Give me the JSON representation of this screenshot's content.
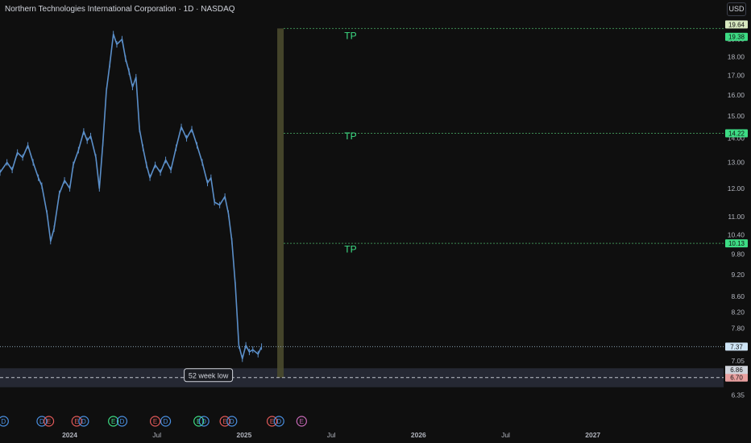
{
  "header": {
    "title": "Northern Technologies International Corporation · 1D · NASDAQ",
    "currency": "USD"
  },
  "colors": {
    "background": "#0f0f0f",
    "candle": "#5b8fc9",
    "tp_text": "#3ddc84",
    "tp_line": "#3f8f55",
    "band": "#2a2e3c",
    "vertical_band": "#4a4a2e",
    "red_badge": "#e35a5a",
    "purple_badge": "#c86ab8",
    "green_badge": "#3ddc84",
    "blue_badge": "#4a90e2"
  },
  "chart_data": {
    "type": "line",
    "title": "Northern Technologies International Corporation · 1D · NASDAQ",
    "xlabel": "",
    "ylabel": "",
    "x_ticks": [
      "2024",
      "Jul",
      "2025",
      "Jul",
      "2026",
      "Jul",
      "2027"
    ],
    "x_tick_values": [
      2024.0,
      2024.5,
      2025.0,
      2025.5,
      2026.0,
      2026.5,
      2027.0
    ],
    "xlim": [
      2023.6,
      2027.75
    ],
    "ylim": [
      6.2,
      20.3
    ],
    "y_scale": "log",
    "y_ticks": [
      "19.00",
      "18.00",
      "17.00",
      "16.00",
      "15.00",
      "14.00",
      "13.00",
      "12.00",
      "11.00",
      "10.40",
      "9.80",
      "9.20",
      "8.60",
      "8.20",
      "7.80",
      "7.05",
      "6.35"
    ],
    "grid": false,
    "series": [
      {
        "values": [
          [
            2023.6,
            12.6
          ],
          [
            2023.64,
            13.0
          ],
          [
            2023.67,
            12.7
          ],
          [
            2023.7,
            13.4
          ],
          [
            2023.73,
            13.2
          ],
          [
            2023.76,
            13.7
          ],
          [
            2023.79,
            13.0
          ],
          [
            2023.82,
            12.4
          ],
          [
            2023.84,
            12.1
          ],
          [
            2023.87,
            11.1
          ],
          [
            2023.89,
            10.2
          ],
          [
            2023.91,
            10.6
          ],
          [
            2023.94,
            11.8
          ],
          [
            2023.97,
            12.3
          ],
          [
            2024.0,
            12.0
          ],
          [
            2024.02,
            12.9
          ],
          [
            2024.05,
            13.5
          ],
          [
            2024.08,
            14.3
          ],
          [
            2024.1,
            13.9
          ],
          [
            2024.12,
            14.1
          ],
          [
            2024.15,
            13.2
          ],
          [
            2024.17,
            12.0
          ],
          [
            2024.19,
            13.8
          ],
          [
            2024.21,
            16.2
          ],
          [
            2024.23,
            17.6
          ],
          [
            2024.25,
            19.3
          ],
          [
            2024.27,
            18.7
          ],
          [
            2024.3,
            19.0
          ],
          [
            2024.32,
            17.9
          ],
          [
            2024.34,
            17.2
          ],
          [
            2024.36,
            16.4
          ],
          [
            2024.38,
            16.9
          ],
          [
            2024.4,
            14.4
          ],
          [
            2024.42,
            13.6
          ],
          [
            2024.44,
            12.9
          ],
          [
            2024.46,
            12.4
          ],
          [
            2024.49,
            12.9
          ],
          [
            2024.52,
            12.6
          ],
          [
            2024.55,
            13.1
          ],
          [
            2024.58,
            12.7
          ],
          [
            2024.61,
            13.6
          ],
          [
            2024.64,
            14.5
          ],
          [
            2024.67,
            14.0
          ],
          [
            2024.7,
            14.4
          ],
          [
            2024.73,
            13.7
          ],
          [
            2024.76,
            13.0
          ],
          [
            2024.79,
            12.2
          ],
          [
            2024.81,
            12.4
          ],
          [
            2024.83,
            11.5
          ],
          [
            2024.86,
            11.4
          ],
          [
            2024.89,
            11.7
          ],
          [
            2024.91,
            11.1
          ],
          [
            2024.93,
            10.2
          ],
          [
            2024.95,
            8.9
          ],
          [
            2024.97,
            7.4
          ],
          [
            2024.99,
            7.1
          ],
          [
            2025.01,
            7.4
          ],
          [
            2025.03,
            7.25
          ],
          [
            2025.05,
            7.3
          ],
          [
            2025.08,
            7.2
          ],
          [
            2025.1,
            7.37
          ]
        ]
      }
    ],
    "horizontal_lines": [
      {
        "value": 19.64,
        "label": "19.64"
      },
      {
        "value": 19.38,
        "label": "19.38"
      },
      {
        "value": 14.22,
        "label": "14.22"
      },
      {
        "value": 10.13,
        "label": "10.13"
      },
      {
        "value": 7.37,
        "label": "7.37"
      },
      {
        "value": 6.7,
        "label": "6.70"
      }
    ],
    "zone": {
      "from": 6.7,
      "to": 6.86,
      "label": "6.86"
    },
    "annotations": [
      {
        "text": "TP",
        "x": 2025.61,
        "y": 19.0
      },
      {
        "text": "TP",
        "x": 2025.61,
        "y": 13.95
      },
      {
        "text": "TP",
        "x": 2025.61,
        "y": 9.85
      },
      {
        "text": "52 week low",
        "x": 2024.98,
        "y": 6.75
      }
    ],
    "event_markers": [
      {
        "text": "D",
        "x": 2023.62,
        "kind": "blue"
      },
      {
        "text": "D",
        "x": 2023.84,
        "kind": "blue"
      },
      {
        "text": "E",
        "x": 2023.88,
        "kind": "red"
      },
      {
        "text": "E",
        "x": 2024.04,
        "kind": "red"
      },
      {
        "text": "D",
        "x": 2024.08,
        "kind": "blue"
      },
      {
        "text": "E",
        "x": 2024.25,
        "kind": "green"
      },
      {
        "text": "D",
        "x": 2024.3,
        "kind": "blue"
      },
      {
        "text": "E",
        "x": 2024.49,
        "kind": "red"
      },
      {
        "text": "D",
        "x": 2024.55,
        "kind": "blue"
      },
      {
        "text": "E",
        "x": 2024.74,
        "kind": "green"
      },
      {
        "text": "D",
        "x": 2024.77,
        "kind": "blue"
      },
      {
        "text": "E",
        "x": 2024.89,
        "kind": "red"
      },
      {
        "text": "D",
        "x": 2024.93,
        "kind": "blue"
      },
      {
        "text": "E",
        "x": 2025.16,
        "kind": "red"
      },
      {
        "text": "D",
        "x": 2025.2,
        "kind": "blue"
      },
      {
        "text": "E",
        "x": 2025.33,
        "kind": "purple"
      }
    ],
    "vertical_band": {
      "from": 2025.19,
      "to": 2025.2
    }
  }
}
